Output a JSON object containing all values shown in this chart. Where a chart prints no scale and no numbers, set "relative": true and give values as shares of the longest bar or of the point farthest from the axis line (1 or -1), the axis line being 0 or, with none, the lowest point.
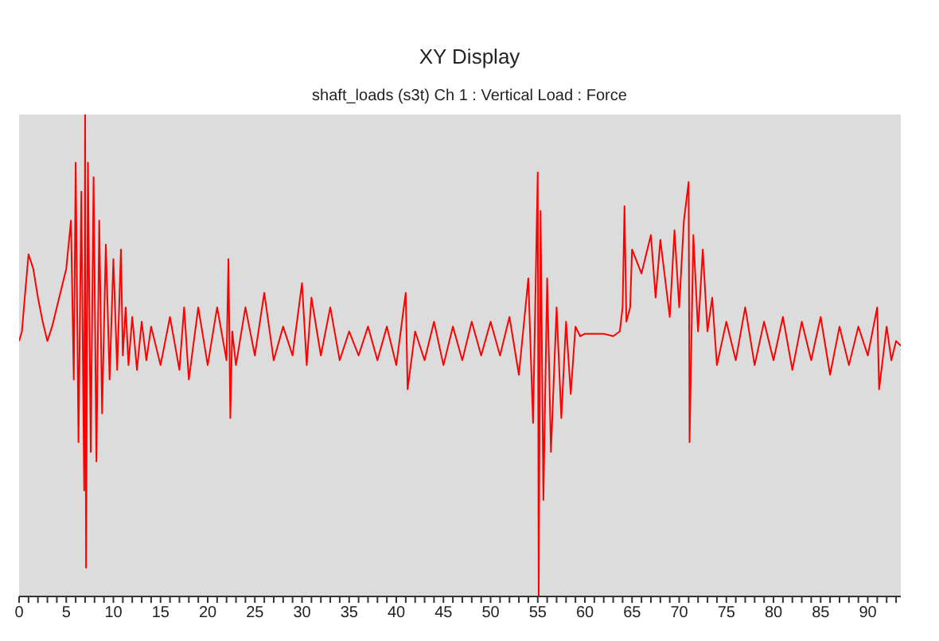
{
  "chart_data": {
    "type": "line",
    "title": "XY Display",
    "subtitle": "shaft_loads (s3t)  Ch 1 : Vertical Load : Force",
    "relative": true,
    "marker": "none",
    "tick_labels": "x",
    "grid": false,
    "xlim": [
      0,
      93.5
    ],
    "xticks": [
      0,
      {
        "value": 1,
        "label": null
      },
      {
        "value": 2,
        "label": null
      },
      {
        "value": 3,
        "label": null
      },
      {
        "value": 4,
        "label": null
      },
      5,
      {
        "value": 6,
        "label": null
      },
      {
        "value": 7,
        "label": null
      },
      {
        "value": 8,
        "label": null
      },
      {
        "value": 9,
        "label": null
      },
      10,
      {
        "value": 11,
        "label": null
      },
      {
        "value": 12,
        "label": null
      },
      {
        "value": 13,
        "label": null
      },
      {
        "value": 14,
        "label": null
      },
      15,
      {
        "value": 16,
        "label": null
      },
      {
        "value": 17,
        "label": null
      },
      {
        "value": 18,
        "label": null
      },
      {
        "value": 19,
        "label": null
      },
      20,
      {
        "value": 21,
        "label": null
      },
      {
        "value": 22,
        "label": null
      },
      {
        "value": 23,
        "label": null
      },
      {
        "value": 24,
        "label": null
      },
      25,
      {
        "value": 26,
        "label": null
      },
      {
        "value": 27,
        "label": null
      },
      {
        "value": 28,
        "label": null
      },
      {
        "value": 29,
        "label": null
      },
      30,
      {
        "value": 31,
        "label": null
      },
      {
        "value": 32,
        "label": null
      },
      {
        "value": 33,
        "label": null
      },
      {
        "value": 34,
        "label": null
      },
      35,
      {
        "value": 36,
        "label": null
      },
      {
        "value": 37,
        "label": null
      },
      {
        "value": 38,
        "label": null
      },
      {
        "value": 39,
        "label": null
      },
      40,
      {
        "value": 41,
        "label": null
      },
      {
        "value": 42,
        "label": null
      },
      {
        "value": 43,
        "label": null
      },
      {
        "value": 44,
        "label": null
      },
      45,
      {
        "value": 46,
        "label": null
      },
      {
        "value": 47,
        "label": null
      },
      {
        "value": 48,
        "label": null
      },
      {
        "value": 49,
        "label": null
      },
      50,
      {
        "value": 51,
        "label": null
      },
      {
        "value": 52,
        "label": null
      },
      {
        "value": 53,
        "label": null
      },
      {
        "value": 54,
        "label": null
      },
      55,
      {
        "value": 56,
        "label": null
      },
      {
        "value": 57,
        "label": null
      },
      {
        "value": 58,
        "label": null
      },
      {
        "value": 59,
        "label": null
      },
      60,
      {
        "value": 61,
        "label": null
      },
      {
        "value": 62,
        "label": null
      },
      {
        "value": 63,
        "label": null
      },
      {
        "value": 64,
        "label": null
      },
      65,
      {
        "value": 66,
        "label": null
      },
      {
        "value": 67,
        "label": null
      },
      {
        "value": 68,
        "label": null
      },
      {
        "value": 69,
        "label": null
      },
      70,
      {
        "value": 71,
        "label": null
      },
      {
        "value": 72,
        "label": null
      },
      {
        "value": 73,
        "label": null
      },
      {
        "value": 74,
        "label": null
      },
      75,
      {
        "value": 76,
        "label": null
      },
      {
        "value": 77,
        "label": null
      },
      {
        "value": 78,
        "label": null
      },
      {
        "value": 79,
        "label": null
      },
      80,
      {
        "value": 81,
        "label": null
      },
      {
        "value": 82,
        "label": null
      },
      {
        "value": 83,
        "label": null
      },
      {
        "value": 84,
        "label": null
      },
      85,
      {
        "value": 86,
        "label": null
      },
      {
        "value": 87,
        "label": null
      },
      {
        "value": 88,
        "label": null
      },
      {
        "value": 89,
        "label": null
      },
      90,
      {
        "value": 91,
        "label": null
      },
      {
        "value": 92,
        "label": null
      },
      {
        "value": 93,
        "label": null
      }
    ],
    "series": [
      {
        "color": "#ff0000",
        "x": [
          0,
          0.3,
          0.6,
          1,
          1.5,
          2,
          2.5,
          3,
          3.5,
          4,
          4.5,
          5,
          5.5,
          5.8,
          6,
          6.3,
          6.6,
          6.9,
          7,
          7.1,
          7.3,
          7.6,
          7.9,
          8.2,
          8.5,
          8.8,
          9.2,
          9.6,
          10,
          10.4,
          10.8,
          11,
          11.3,
          11.6,
          12,
          12.5,
          13,
          13.5,
          14,
          15,
          16,
          17,
          17.5,
          18,
          19,
          20,
          21,
          22,
          22.2,
          22.4,
          22.6,
          23,
          24,
          25,
          26,
          27,
          28,
          29,
          30,
          30.5,
          31,
          32,
          33,
          34,
          35,
          36,
          37,
          38,
          39,
          40,
          41,
          41.2,
          42,
          43,
          44,
          45,
          46,
          47,
          48,
          49,
          50,
          51,
          52,
          53,
          54,
          54.5,
          55,
          55.1,
          55.3,
          55.6,
          56,
          56.4,
          57,
          57.5,
          58,
          58.5,
          59,
          59.5,
          60,
          62,
          63,
          63.7,
          64,
          64.2,
          64.4,
          64.8,
          65,
          66,
          67,
          67.5,
          68,
          69,
          69.5,
          70,
          70.5,
          71,
          71.1,
          71.5,
          72,
          72.5,
          73,
          73.5,
          74,
          75,
          76,
          77,
          78,
          79,
          80,
          81,
          82,
          83,
          84,
          85,
          86,
          87,
          88,
          89,
          90,
          91,
          91.2,
          92,
          92.5,
          93,
          93.5
        ],
        "values": [
          0.53,
          0.55,
          0.62,
          0.71,
          0.68,
          0.62,
          0.57,
          0.53,
          0.56,
          0.6,
          0.64,
          0.68,
          0.78,
          0.45,
          0.9,
          0.32,
          0.84,
          0.22,
          1,
          0.06,
          0.9,
          0.3,
          0.87,
          0.28,
          0.78,
          0.38,
          0.73,
          0.45,
          0.7,
          0.47,
          0.72,
          0.5,
          0.6,
          0.48,
          0.58,
          0.47,
          0.57,
          0.49,
          0.56,
          0.48,
          0.58,
          0.47,
          0.6,
          0.45,
          0.6,
          0.48,
          0.6,
          0.49,
          0.7,
          0.37,
          0.55,
          0.48,
          0.6,
          0.5,
          0.63,
          0.49,
          0.56,
          0.5,
          0.65,
          0.48,
          0.62,
          0.5,
          0.6,
          0.49,
          0.55,
          0.5,
          0.56,
          0.49,
          0.56,
          0.48,
          0.63,
          0.43,
          0.55,
          0.49,
          0.57,
          0.48,
          0.56,
          0.49,
          0.57,
          0.5,
          0.57,
          0.5,
          0.58,
          0.46,
          0.66,
          0.36,
          0.88,
          0,
          0.8,
          0.2,
          0.66,
          0.3,
          0.6,
          0.37,
          0.57,
          0.42,
          0.56,
          0.54,
          0.545,
          0.545,
          0.54,
          0.55,
          0.6,
          0.81,
          0.57,
          0.6,
          0.72,
          0.67,
          0.75,
          0.62,
          0.74,
          0.58,
          0.76,
          0.6,
          0.78,
          0.86,
          0.32,
          0.75,
          0.55,
          0.72,
          0.55,
          0.62,
          0.48,
          0.57,
          0.49,
          0.6,
          0.48,
          0.57,
          0.49,
          0.58,
          0.47,
          0.57,
          0.49,
          0.58,
          0.46,
          0.56,
          0.48,
          0.56,
          0.5,
          0.6,
          0.43,
          0.56,
          0.49,
          0.53,
          0.52
        ]
      }
    ]
  }
}
